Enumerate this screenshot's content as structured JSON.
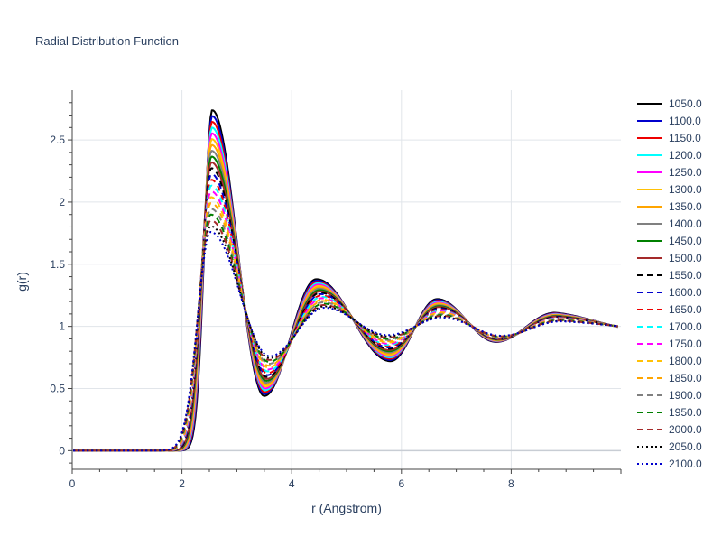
{
  "chart_data": {
    "type": "line",
    "title": "Radial Distribution Function",
    "xlabel": "r (Angstrom)",
    "ylabel": "g(r)",
    "xlim": [
      0,
      10
    ],
    "ylim": [
      -0.15,
      2.9
    ],
    "x_ticks": [
      0,
      2,
      4,
      6,
      8
    ],
    "y_ticks": [
      0,
      0.5,
      1,
      1.5,
      2,
      2.5
    ],
    "x_tick_labels": [
      "0",
      "2",
      "4",
      "6",
      "8"
    ],
    "y_tick_labels": [
      "0",
      "0.5",
      "1",
      "1.5",
      "2",
      "2.5"
    ],
    "grid": true,
    "legend": "right",
    "colors": [
      "#000000",
      "#0000cd",
      "#ee0000",
      "#00ffff",
      "#ff00ff",
      "#ffc107",
      "#ffa500",
      "#808080",
      "#008000",
      "#a52a2a"
    ],
    "peaks": {
      "first_peak_r": [
        2.55,
        2.52
      ],
      "first_peak_height": [
        2.74,
        1.76
      ],
      "first_min_r": [
        3.5,
        3.6
      ],
      "first_min_height": [
        0.44,
        0.76
      ],
      "second_peak_r": [
        4.45,
        4.6
      ],
      "second_peak_height": [
        1.38,
        1.15
      ],
      "second_min_r": [
        5.8,
        5.75
      ],
      "second_min_height": [
        0.72,
        0.93
      ],
      "third_peak_r": [
        6.65,
        6.75
      ],
      "third_peak_height": [
        1.22,
        1.07
      ],
      "fourth_peak_r": [
        8.8,
        8.9
      ],
      "fourth_peak_height": [
        1.11,
        1.04
      ]
    },
    "series": [
      {
        "name": "1050.0",
        "style": "solid"
      },
      {
        "name": "1100.0",
        "style": "solid"
      },
      {
        "name": "1150.0",
        "style": "solid"
      },
      {
        "name": "1200.0",
        "style": "solid"
      },
      {
        "name": "1250.0",
        "style": "solid"
      },
      {
        "name": "1300.0",
        "style": "solid"
      },
      {
        "name": "1350.0",
        "style": "solid"
      },
      {
        "name": "1400.0",
        "style": "solid"
      },
      {
        "name": "1450.0",
        "style": "solid"
      },
      {
        "name": "1500.0",
        "style": "solid"
      },
      {
        "name": "1550.0",
        "style": "dash"
      },
      {
        "name": "1600.0",
        "style": "dash"
      },
      {
        "name": "1650.0",
        "style": "dash"
      },
      {
        "name": "1700.0",
        "style": "dash"
      },
      {
        "name": "1750.0",
        "style": "dash"
      },
      {
        "name": "1800.0",
        "style": "dash"
      },
      {
        "name": "1850.0",
        "style": "dash"
      },
      {
        "name": "1900.0",
        "style": "dash"
      },
      {
        "name": "1950.0",
        "style": "dash"
      },
      {
        "name": "2000.0",
        "style": "dash"
      },
      {
        "name": "2050.0",
        "style": "dot"
      },
      {
        "name": "2100.0",
        "style": "dot"
      }
    ]
  }
}
